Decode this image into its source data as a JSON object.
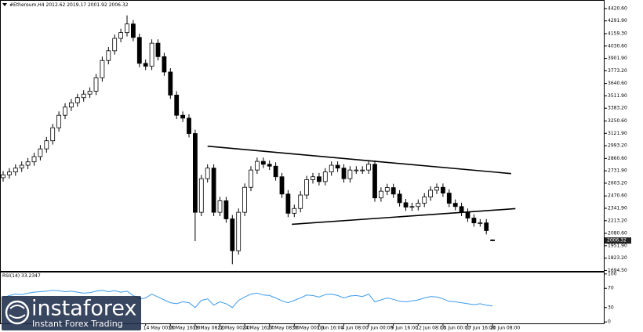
{
  "chart_data": {
    "type": "candlestick",
    "title": "#Ethereum,H4",
    "categories": [
      null,
      null,
      null,
      null,
      null,
      null,
      null,
      null,
      null,
      null,
      null,
      null,
      null,
      null,
      null,
      null,
      null,
      null,
      null,
      null,
      null,
      null,
      null,
      "14 May 00:00",
      null,
      null,
      null,
      "16 May 16:00",
      null,
      null,
      null,
      "19 May 08:00",
      null,
      null,
      null,
      "22 May 00:00",
      null,
      null,
      null,
      "24 May 16:00",
      null,
      null,
      null,
      "27 May 08:00",
      null,
      null,
      null,
      "30 May 00:00",
      null,
      null,
      null,
      "1 Jun 16:00",
      null,
      null,
      null,
      "4 Jun 08:00",
      null,
      null,
      null,
      "7 Jun 00:00",
      null,
      null,
      null,
      "9 Jun 16:00",
      null,
      null,
      null,
      "12 Jun 08:00",
      null,
      null,
      null,
      "15 Jun 00:00",
      null,
      null,
      null,
      "17 Jun 16:00",
      null,
      null,
      null,
      "20 Jun 08:00"
    ],
    "open": [
      2660,
      2690,
      2720,
      2760,
      2790,
      2825,
      2880,
      2960,
      3045,
      3180,
      3310,
      3395,
      3440,
      3493,
      3530,
      3560,
      3700,
      3880,
      3981,
      4110,
      4170,
      4260,
      4120,
      3850,
      3820,
      4060,
      3920,
      3760,
      3520,
      3310,
      3280,
      3120,
      2300,
      2650,
      2760,
      2300,
      2420,
      2232,
      1900,
      2300,
      2560,
      2740,
      2830,
      2800,
      2780,
      2670,
      2490,
      2290,
      2340,
      2480,
      2640,
      2670,
      2620,
      2720,
      2790,
      2760,
      2650,
      2740,
      2740,
      2740,
      2800,
      2450,
      2520,
      2557,
      2490,
      2400,
      2354,
      2360,
      2394,
      2460,
      2530,
      2560,
      2500,
      2394,
      2360,
      2300,
      2240,
      2190,
      2190,
      2012.62
    ],
    "high": [
      2730,
      2760,
      2800,
      2830,
      2865,
      2920,
      3000,
      3085,
      3220,
      3350,
      3435,
      3480,
      3533,
      3570,
      3600,
      3740,
      3920,
      4021,
      4150,
      4210,
      4350,
      4300,
      4160,
      3890,
      4100,
      4100,
      3960,
      3800,
      3560,
      3350,
      3320,
      3160,
      2690,
      2800,
      2800,
      2460,
      2460,
      2272,
      2340,
      2600,
      2780,
      2870,
      2870,
      2840,
      2820,
      2710,
      2530,
      2380,
      2520,
      2680,
      2710,
      2710,
      2760,
      2830,
      2830,
      2800,
      2780,
      2780,
      2780,
      2840,
      2840,
      2560,
      2597,
      2597,
      2530,
      2440,
      2400,
      2434,
      2500,
      2570,
      2600,
      2600,
      2540,
      2434,
      2400,
      2340,
      2280,
      2230,
      2230,
      2019.17
    ],
    "low": [
      2620,
      2650,
      2680,
      2720,
      2750,
      2785,
      2840,
      2920,
      3005,
      3140,
      3270,
      3355,
      3400,
      3453,
      3490,
      3520,
      3660,
      3840,
      3941,
      4070,
      4130,
      4080,
      3810,
      3780,
      3780,
      3880,
      3720,
      3480,
      3270,
      3240,
      3080,
      2000,
      2260,
      2610,
      2260,
      2260,
      2192,
      1760,
      1860,
      2260,
      2520,
      2700,
      2760,
      2740,
      2630,
      2450,
      2250,
      2250,
      2300,
      2440,
      2600,
      2580,
      2580,
      2680,
      2720,
      2610,
      2610,
      2700,
      2700,
      2700,
      2410,
      2410,
      2480,
      2450,
      2360,
      2314,
      2314,
      2320,
      2354,
      2420,
      2490,
      2460,
      2354,
      2320,
      2260,
      2200,
      2150,
      2150,
      2070,
      2001.92
    ],
    "close": [
      2690,
      2720,
      2760,
      2790,
      2825,
      2880,
      2960,
      3045,
      3180,
      3310,
      3395,
      3440,
      3493,
      3530,
      3560,
      3700,
      3880,
      3981,
      4110,
      4170,
      4260,
      4120,
      3850,
      3820,
      4060,
      3920,
      3760,
      3520,
      3310,
      3280,
      3120,
      2300,
      2650,
      2760,
      2300,
      2420,
      2232,
      1900,
      2300,
      2560,
      2740,
      2830,
      2800,
      2780,
      2670,
      2490,
      2290,
      2340,
      2480,
      2640,
      2670,
      2620,
      2720,
      2790,
      2760,
      2650,
      2740,
      2740,
      2740,
      2800,
      2450,
      2520,
      2557,
      2490,
      2400,
      2354,
      2360,
      2394,
      2460,
      2530,
      2560,
      2500,
      2394,
      2360,
      2300,
      2240,
      2190,
      2190,
      2110,
      2006.32
    ],
    "color_up": "#ffffff",
    "color_down": "#000000",
    "ylim": [
      1690,
      4485
    ],
    "yticks": [
      {
        "value": 4420.6,
        "label": "4420.60"
      },
      {
        "value": 4291.9,
        "label": "4291.90"
      },
      {
        "value": 4159.3,
        "label": "4159.30"
      },
      {
        "value": 4030.6,
        "label": "4030.60"
      },
      {
        "value": 3901.9,
        "label": "3901.90"
      },
      {
        "value": 3773.2,
        "label": "3773.20"
      },
      {
        "value": 3640.6,
        "label": "3640.60"
      },
      {
        "value": 3511.9,
        "label": "3511.90"
      },
      {
        "value": 3383.2,
        "label": "3383.20"
      },
      {
        "value": 3250.6,
        "label": "3250.60"
      },
      {
        "value": 3121.9,
        "label": "3121.90"
      },
      {
        "value": 2993.2,
        "label": "2993.20"
      },
      {
        "value": 2860.6,
        "label": "2860.60"
      },
      {
        "value": 2731.9,
        "label": "2731.90"
      },
      {
        "value": 2603.2,
        "label": "2603.20"
      },
      {
        "value": 2470.6,
        "label": "2470.60"
      },
      {
        "value": 2341.9,
        "label": "2341.90"
      },
      {
        "value": 2213.2,
        "label": "2213.20"
      },
      {
        "value": 2080.6,
        "label": "2080.60"
      },
      {
        "value": 1951.9,
        "label": "1951.90"
      },
      {
        "value": 1823.2,
        "label": "1823.20"
      },
      {
        "value": 1694.5,
        "label": "1694.50"
      }
    ],
    "trendlines": [
      {
        "color": "#000000",
        "x": [
          33,
          82
        ],
        "values": [
          2988,
          2703
        ]
      },
      {
        "color": "#000000",
        "x": [
          46.6,
          82.7
        ],
        "values": [
          2175,
          2338
        ]
      }
    ],
    "indicator": {
      "name": "RSI(14)",
      "color": "#3d9be9",
      "values": [
        50,
        55,
        58,
        57,
        60,
        62,
        63,
        64,
        66,
        65,
        63,
        64,
        62,
        60,
        61,
        64,
        66,
        63,
        65,
        62,
        64,
        55,
        48,
        50,
        58,
        52,
        46,
        40,
        38,
        42,
        40,
        30,
        45,
        48,
        35,
        42,
        38,
        30,
        45,
        52,
        58,
        60,
        56,
        55,
        50,
        44,
        40,
        45,
        50,
        56,
        55,
        52,
        57,
        58,
        55,
        50,
        54,
        55,
        53,
        58,
        42,
        46,
        50,
        47,
        43,
        42,
        44,
        46,
        50,
        53,
        52,
        48,
        43,
        42,
        40,
        38,
        36,
        38,
        35,
        33.2347
      ],
      "ylim": [
        -3,
        103
      ],
      "yticks": [
        100,
        70,
        30,
        0
      ]
    },
    "watermark": {
      "brand": "instaforex",
      "tagline": "Instant Forex Trading"
    }
  }
}
